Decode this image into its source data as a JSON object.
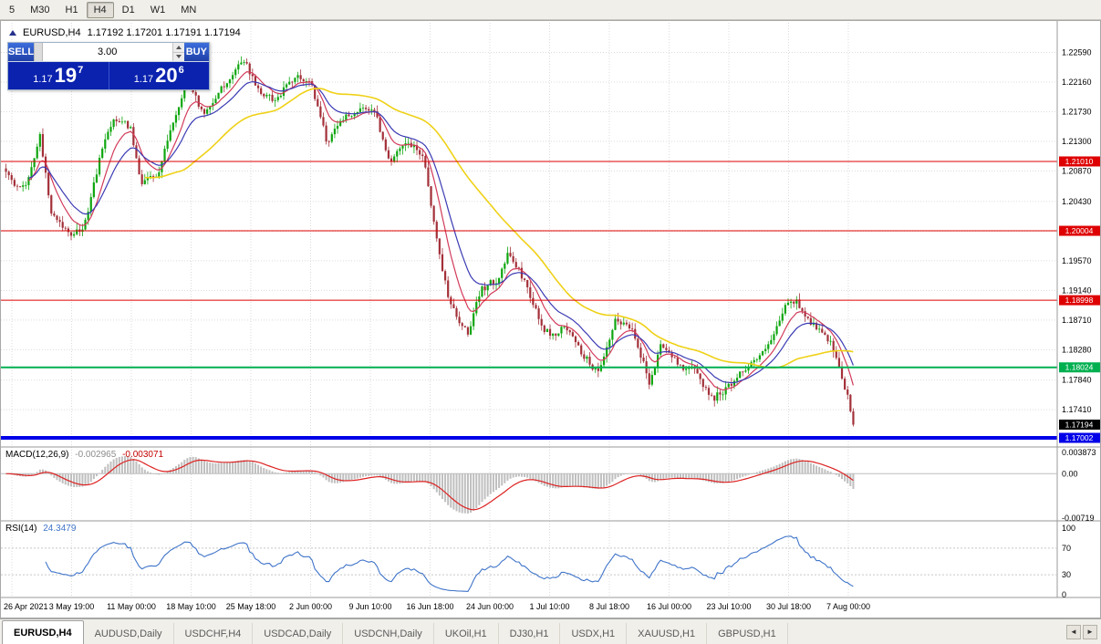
{
  "toolbar": {
    "timeframes": [
      "5",
      "M30",
      "H1",
      "H4",
      "D1",
      "W1",
      "MN"
    ],
    "active": "H4"
  },
  "chart": {
    "title_symbol": "EURUSD,H4",
    "ohlc": "1.17192 1.17201 1.17191 1.17194",
    "trade_panel": {
      "sell_label": "SELL",
      "buy_label": "BUY",
      "lot_value": "3.00",
      "sell_price": {
        "prefix": "1.17",
        "big": "19",
        "sup": "7"
      },
      "buy_price": {
        "prefix": "1.17",
        "big": "20",
        "sup": "6"
      }
    }
  },
  "chart_data": {
    "type": "candlestick",
    "title": "EURUSD,H4",
    "y_range": [
      1.1687,
      1.2302
    ],
    "price_ticks": [
      "1.22590",
      "1.22160",
      "1.21730",
      "1.21300",
      "1.20870",
      "1.20430",
      "1.20000",
      "1.19570",
      "1.19140",
      "1.18710",
      "1.18280",
      "1.17840",
      "1.17410"
    ],
    "time_labels": [
      "26 Apr 2021",
      "3 May 19:00",
      "11 May 00:00",
      "18 May 10:00",
      "25 May 18:00",
      "2 Jun 00:00",
      "9 Jun 10:00",
      "16 Jun 18:00",
      "24 Jun 00:00",
      "1 Jul 10:00",
      "8 Jul 18:00",
      "16 Jul 00:00",
      "23 Jul 10:00",
      "30 Jul 18:00",
      "7 Aug 00:00"
    ],
    "levels": [
      {
        "price": 1.2101,
        "label": "1.21010",
        "color": "#DE0000",
        "width": 1
      },
      {
        "price": 1.20004,
        "label": "1.20004",
        "color": "#DE0000",
        "width": 1
      },
      {
        "price": 1.18998,
        "label": "1.18998",
        "color": "#DE0000",
        "width": 1
      },
      {
        "price": 1.18024,
        "label": "1.18024",
        "color": "#00B050",
        "width": 2
      },
      {
        "price": 1.17002,
        "label": "1.17002",
        "color": "#0000E8",
        "width": 4
      }
    ],
    "current_price": {
      "price": 1.17194,
      "label": "1.17194",
      "color": "#000000"
    },
    "candles_n": 300,
    "trading_days_total": 75,
    "up_color": "#0EA60E",
    "down_color": "#A33039",
    "path_anchors": [
      [
        0,
        1.209
      ],
      [
        1,
        1.206
      ],
      [
        2,
        1.2075
      ],
      [
        3,
        1.214
      ],
      [
        4,
        1.203
      ],
      [
        5,
        1.2008
      ],
      [
        5.8,
        1.199
      ],
      [
        7,
        1.201
      ],
      [
        8.5,
        1.212
      ],
      [
        9.5,
        1.2165
      ],
      [
        11,
        1.215
      ],
      [
        12,
        1.207
      ],
      [
        13.5,
        1.2085
      ],
      [
        14.5,
        1.214
      ],
      [
        16,
        1.222
      ],
      [
        17.5,
        1.217
      ],
      [
        19,
        1.2205
      ],
      [
        21,
        1.225
      ],
      [
        22.5,
        1.22
      ],
      [
        24,
        1.219
      ],
      [
        25.5,
        1.2225
      ],
      [
        27,
        1.2215
      ],
      [
        28.5,
        1.2125
      ],
      [
        29.5,
        1.216
      ],
      [
        31,
        1.2172
      ],
      [
        32.5,
        1.218
      ],
      [
        34,
        1.21
      ],
      [
        35.5,
        1.2128
      ],
      [
        37,
        1.2108
      ],
      [
        38,
        1.1998
      ],
      [
        39,
        1.1915
      ],
      [
        40,
        1.1868
      ],
      [
        41,
        1.1852
      ],
      [
        42,
        1.1915
      ],
      [
        43.5,
        1.193
      ],
      [
        44.5,
        1.1968
      ],
      [
        46,
        1.1925
      ],
      [
        47.5,
        1.1858
      ],
      [
        48.5,
        1.1848
      ],
      [
        49.5,
        1.1862
      ],
      [
        51,
        1.1822
      ],
      [
        52.5,
        1.1792
      ],
      [
        54,
        1.1872
      ],
      [
        55.5,
        1.1858
      ],
      [
        57,
        1.1778
      ],
      [
        58,
        1.1838
      ],
      [
        59.5,
        1.1806
      ],
      [
        61,
        1.1798
      ],
      [
        62.5,
        1.1756
      ],
      [
        64,
        1.1775
      ],
      [
        65.5,
        1.1803
      ],
      [
        67,
        1.1822
      ],
      [
        68,
        1.1848
      ],
      [
        69,
        1.1893
      ],
      [
        70,
        1.1898
      ],
      [
        71,
        1.1872
      ],
      [
        72,
        1.1856
      ],
      [
        73,
        1.1836
      ],
      [
        74,
        1.1788
      ],
      [
        74.6,
        1.1752
      ],
      [
        75,
        1.1722
      ]
    ],
    "ma_lines": [
      {
        "period": 9,
        "type": "ema",
        "color": "#D23B5A"
      },
      {
        "period": 18,
        "type": "ema",
        "color": "#3A3AB4"
      },
      {
        "period": 50,
        "type": "sma",
        "color": "#EFD117"
      }
    ],
    "macd": {
      "label": "MACD(12,26,9)",
      "value_main": "-0.002965",
      "value_signal": "-0.003071",
      "fast": 12,
      "slow": 26,
      "signal": 9,
      "axis_labels": [
        "0.003873",
        "0.00",
        "-0.00719"
      ],
      "hist_color": "#BFBFBF",
      "line_color": "#DD2222"
    },
    "rsi": {
      "label": "RSI(14)",
      "value": "24.3479",
      "period": 14,
      "axis_labels": [
        "100",
        "70",
        "30",
        "0"
      ],
      "levels": [
        70,
        30
      ],
      "line_color": "#3F74C9"
    }
  },
  "tabs": {
    "items": [
      {
        "label": "EURUSD,H4",
        "active": true
      },
      {
        "label": "AUDUSD,Daily",
        "active": false
      },
      {
        "label": "USDCHF,H4",
        "active": false
      },
      {
        "label": "USDCAD,Daily",
        "active": false
      },
      {
        "label": "USDCNH,Daily",
        "active": false
      },
      {
        "label": "UKOil,H1",
        "active": false
      },
      {
        "label": "DJ30,H1",
        "active": false
      },
      {
        "label": "USDX,H1",
        "active": false
      },
      {
        "label": "XAUUSD,H1",
        "active": false
      },
      {
        "label": "GBPUSD,H1",
        "active": false
      }
    ],
    "left_arrow": "◄",
    "right_arrow": "►"
  }
}
